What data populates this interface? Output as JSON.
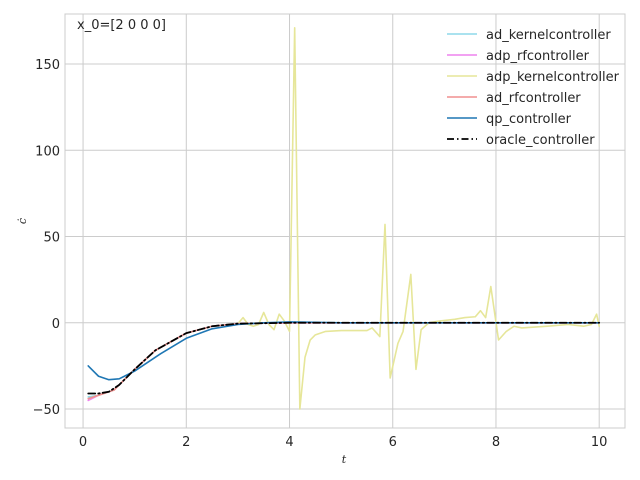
{
  "chart_data": {
    "type": "line",
    "title": "",
    "annotation": "x_0=[2 0 0 0]",
    "xlabel": "t",
    "ylabel": "ċ",
    "xlim": [
      -0.35,
      10.5
    ],
    "ylim": [
      -61,
      179
    ],
    "xticks": [
      0,
      2,
      4,
      6,
      8,
      10
    ],
    "yticks": [
      -50,
      0,
      50,
      100,
      150
    ],
    "grid": true,
    "legend_position": "top-right",
    "series": [
      {
        "name": "ad_kernelcontroller",
        "color": "#8ed8ea",
        "style": "solid",
        "points": [
          [
            0.1,
            -43
          ],
          [
            0.3,
            -42
          ],
          [
            0.6,
            -39
          ],
          [
            1.0,
            -27
          ],
          [
            1.4,
            -16
          ],
          [
            2.0,
            -6
          ],
          [
            2.5,
            -2
          ],
          [
            3.0,
            -0.5
          ],
          [
            4.0,
            0
          ],
          [
            10.0,
            0
          ]
        ]
      },
      {
        "name": "adp_rfcontroller",
        "color": "#ee82ee",
        "style": "solid",
        "points": [
          [
            0.1,
            -45
          ],
          [
            0.3,
            -42
          ],
          [
            0.6,
            -39
          ],
          [
            1.0,
            -27
          ],
          [
            1.4,
            -16
          ],
          [
            2.0,
            -6
          ],
          [
            2.5,
            -2
          ],
          [
            3.0,
            -0.5
          ],
          [
            4.0,
            0
          ],
          [
            10.0,
            0
          ]
        ]
      },
      {
        "name": "adp_kernelcontroller",
        "color": "#e6e699",
        "style": "solid",
        "points": [
          [
            0.1,
            -44
          ],
          [
            0.3,
            -42
          ],
          [
            0.6,
            -39
          ],
          [
            1.0,
            -27
          ],
          [
            1.4,
            -16
          ],
          [
            2.0,
            -6
          ],
          [
            2.5,
            -2
          ],
          [
            3.0,
            -0.5
          ],
          [
            3.1,
            3
          ],
          [
            3.2,
            -1
          ],
          [
            3.3,
            -2
          ],
          [
            3.4,
            -1
          ],
          [
            3.5,
            6
          ],
          [
            3.6,
            -1
          ],
          [
            3.7,
            -4
          ],
          [
            3.8,
            5
          ],
          [
            3.9,
            1
          ],
          [
            4.0,
            -5
          ],
          [
            4.1,
            171
          ],
          [
            4.2,
            -50
          ],
          [
            4.3,
            -20
          ],
          [
            4.4,
            -10
          ],
          [
            4.5,
            -7
          ],
          [
            4.7,
            -5
          ],
          [
            5.0,
            -4.5
          ],
          [
            5.5,
            -4.5
          ],
          [
            5.6,
            -3
          ],
          [
            5.75,
            -8
          ],
          [
            5.85,
            57
          ],
          [
            5.95,
            -32
          ],
          [
            6.1,
            -12
          ],
          [
            6.2,
            -5
          ],
          [
            6.35,
            28
          ],
          [
            6.45,
            -27
          ],
          [
            6.55,
            -4
          ],
          [
            6.7,
            0
          ],
          [
            6.9,
            1
          ],
          [
            7.2,
            2
          ],
          [
            7.4,
            3
          ],
          [
            7.6,
            3.5
          ],
          [
            7.7,
            7
          ],
          [
            7.8,
            3
          ],
          [
            7.9,
            21
          ],
          [
            8.05,
            -10
          ],
          [
            8.2,
            -5
          ],
          [
            8.35,
            -2
          ],
          [
            8.5,
            -3
          ],
          [
            9.0,
            -2
          ],
          [
            9.4,
            -1
          ],
          [
            9.7,
            -2
          ],
          [
            9.85,
            -1
          ],
          [
            9.95,
            5
          ],
          [
            10.0,
            -2
          ]
        ]
      },
      {
        "name": "ad_rfcontroller",
        "color": "#f08f8f",
        "style": "solid",
        "points": [
          [
            0.1,
            -44
          ],
          [
            0.3,
            -42
          ],
          [
            0.6,
            -39
          ],
          [
            1.0,
            -27
          ],
          [
            1.4,
            -16
          ],
          [
            2.0,
            -6
          ],
          [
            2.5,
            -2
          ],
          [
            3.0,
            -0.5
          ],
          [
            4.0,
            0
          ],
          [
            10.0,
            0
          ]
        ]
      },
      {
        "name": "qp_controller",
        "color": "#1f77b4",
        "style": "solid",
        "points": [
          [
            0.1,
            -25
          ],
          [
            0.3,
            -31
          ],
          [
            0.5,
            -33
          ],
          [
            0.7,
            -32.5
          ],
          [
            1.0,
            -28
          ],
          [
            1.5,
            -18
          ],
          [
            2.0,
            -9
          ],
          [
            2.5,
            -3.5
          ],
          [
            3.0,
            -1
          ],
          [
            3.5,
            0
          ],
          [
            4.0,
            0.5
          ],
          [
            4.5,
            0.3
          ],
          [
            5.0,
            0
          ],
          [
            10.0,
            0
          ]
        ]
      },
      {
        "name": "oracle_controller",
        "color": "#000000",
        "style": "dashdot",
        "points": [
          [
            0.1,
            -41
          ],
          [
            0.3,
            -41
          ],
          [
            0.5,
            -40
          ],
          [
            0.7,
            -36
          ],
          [
            1.0,
            -27
          ],
          [
            1.4,
            -16
          ],
          [
            2.0,
            -6
          ],
          [
            2.5,
            -2
          ],
          [
            3.0,
            -0.5
          ],
          [
            4.0,
            0
          ],
          [
            10.0,
            0
          ]
        ]
      }
    ]
  }
}
